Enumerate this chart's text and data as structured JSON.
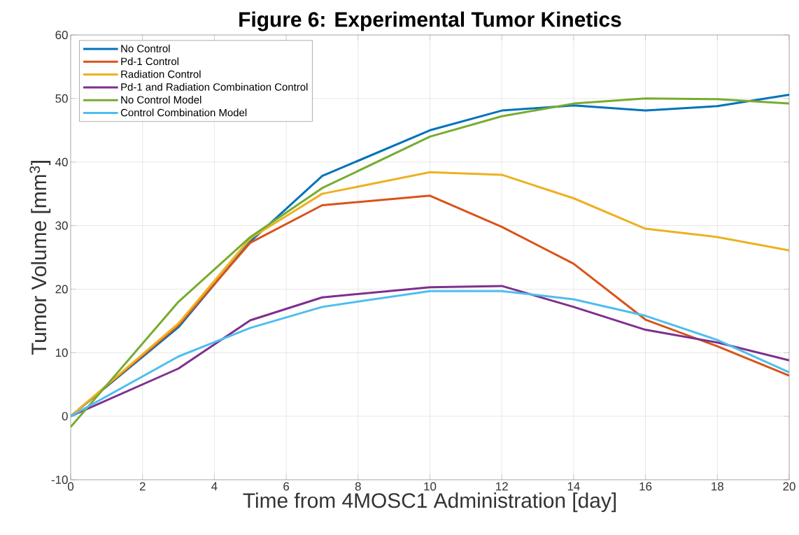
{
  "chart_data": {
    "type": "line",
    "title": "Figure 6: Experimental Tumor Kinetics",
    "xlabel": "Time from 4MOSC1 Administration [day]",
    "ylabel": "Tumor Volume [mm$^{3}$]",
    "x": [
      0,
      3,
      5,
      7,
      10,
      12,
      14,
      16,
      18,
      20
    ],
    "series": [
      {
        "name": "No Control",
        "color": "#0072bd",
        "values": [
          0,
          14,
          27.5,
          37.8,
          45,
          48.1,
          48.9,
          48.1,
          48.8,
          50.6
        ]
      },
      {
        "name": "Pd-1 Control",
        "color": "#d95319",
        "values": [
          0,
          14.3,
          27.3,
          33.2,
          34.7,
          29.8,
          24,
          15.2,
          11,
          6.4
        ]
      },
      {
        "name": "Radiation Control",
        "color": "#edb120",
        "values": [
          0,
          14.6,
          28,
          35,
          38.4,
          38,
          34.3,
          29.5,
          28.2,
          26.1
        ]
      },
      {
        "name": "Pd-1 and Radiation Combination Control",
        "color": "#7e2f8e",
        "values": [
          0,
          7.5,
          15.1,
          18.7,
          20.3,
          20.5,
          17.2,
          13.6,
          11.6,
          8.8
        ]
      },
      {
        "name": "No Control Model",
        "color": "#77ac30",
        "values": [
          -1.7,
          18,
          28.2,
          35.9,
          44,
          47.2,
          49.2,
          50,
          49.9,
          49.2
        ]
      },
      {
        "name": "Control Combination Model",
        "color": "#4dbeee",
        "values": [
          0,
          9.4,
          13.9,
          17.2,
          19.7,
          19.7,
          18.4,
          15.8,
          12,
          6.9
        ]
      }
    ],
    "xlim": [
      0,
      20
    ],
    "ylim": [
      -10,
      60
    ],
    "xticks": [
      0,
      2,
      4,
      6,
      8,
      10,
      12,
      14,
      16,
      18,
      20
    ],
    "yticks": [
      -10,
      0,
      10,
      20,
      30,
      40,
      50,
      60
    ],
    "grid": true,
    "legend": "top left",
    "marker": "none",
    "line_style": "solid"
  }
}
